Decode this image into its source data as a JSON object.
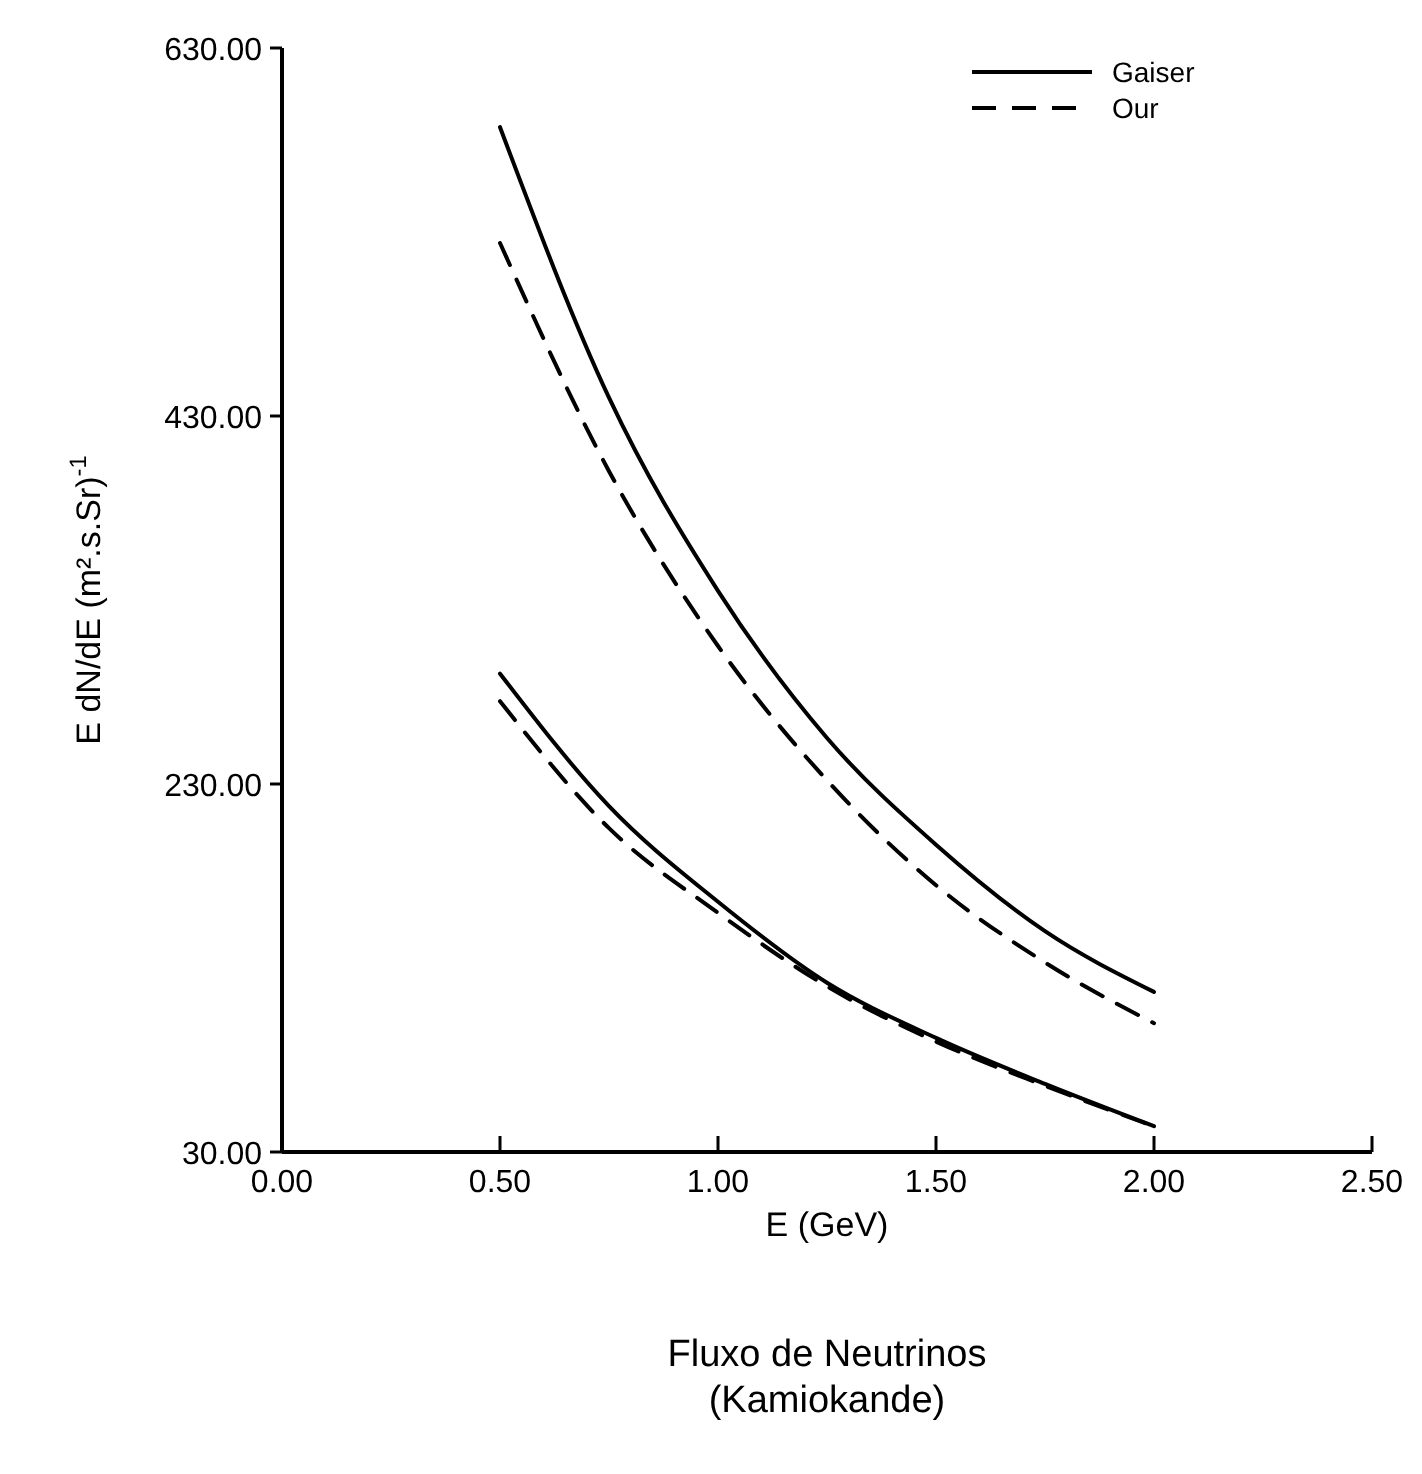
{
  "chart_data": {
    "type": "line",
    "title": "Fluxo de Neutrinos",
    "subtitle": "(Kamiokande)",
    "xlabel": "E  (GeV)",
    "ylabel": "E dN/dE (m².s.Sr)$^{-1}$",
    "x": [
      0.5,
      0.75,
      1.0,
      1.25,
      1.5,
      1.75,
      2.0
    ],
    "series": [
      {
        "name": "Gaiser",
        "color": "#000000",
        "line_style": "solid",
        "values": [
          587,
          440,
          335,
          255,
          197,
          150,
          117
        ]
      },
      {
        "name": "Our",
        "color": "#000000",
        "line_style": "dashed",
        "values": [
          524,
          400,
          305,
          232,
          175,
          133,
          100
        ]
      },
      {
        "color": "#000000",
        "line_style": "solid",
        "values": [
          290,
          218,
          166,
          122,
          92,
          67,
          44
        ]
      },
      {
        "color": "#000000",
        "line_style": "dashed",
        "values": [
          275,
          206,
          160,
          120,
          90,
          66,
          44
        ]
      }
    ],
    "xlim": [
      0,
      2.5
    ],
    "ylim": [
      30,
      630
    ],
    "xticks": [
      {
        "value": 0,
        "label": "0.00"
      },
      {
        "value": 0.5,
        "label": "0.50"
      },
      {
        "value": 1,
        "label": "1.00"
      },
      {
        "value": 1.5,
        "label": "1.50"
      },
      {
        "value": 2,
        "label": "2.00"
      },
      {
        "value": 2.5,
        "label": "2.50"
      }
    ],
    "yticks": [
      {
        "value": 30,
        "label": "30.00"
      },
      {
        "value": 230,
        "label": "230.00"
      },
      {
        "value": 430,
        "label": "430.00"
      },
      {
        "value": 630,
        "label": "630.00"
      }
    ],
    "legend": "top right",
    "grid": false,
    "marker": "none"
  }
}
